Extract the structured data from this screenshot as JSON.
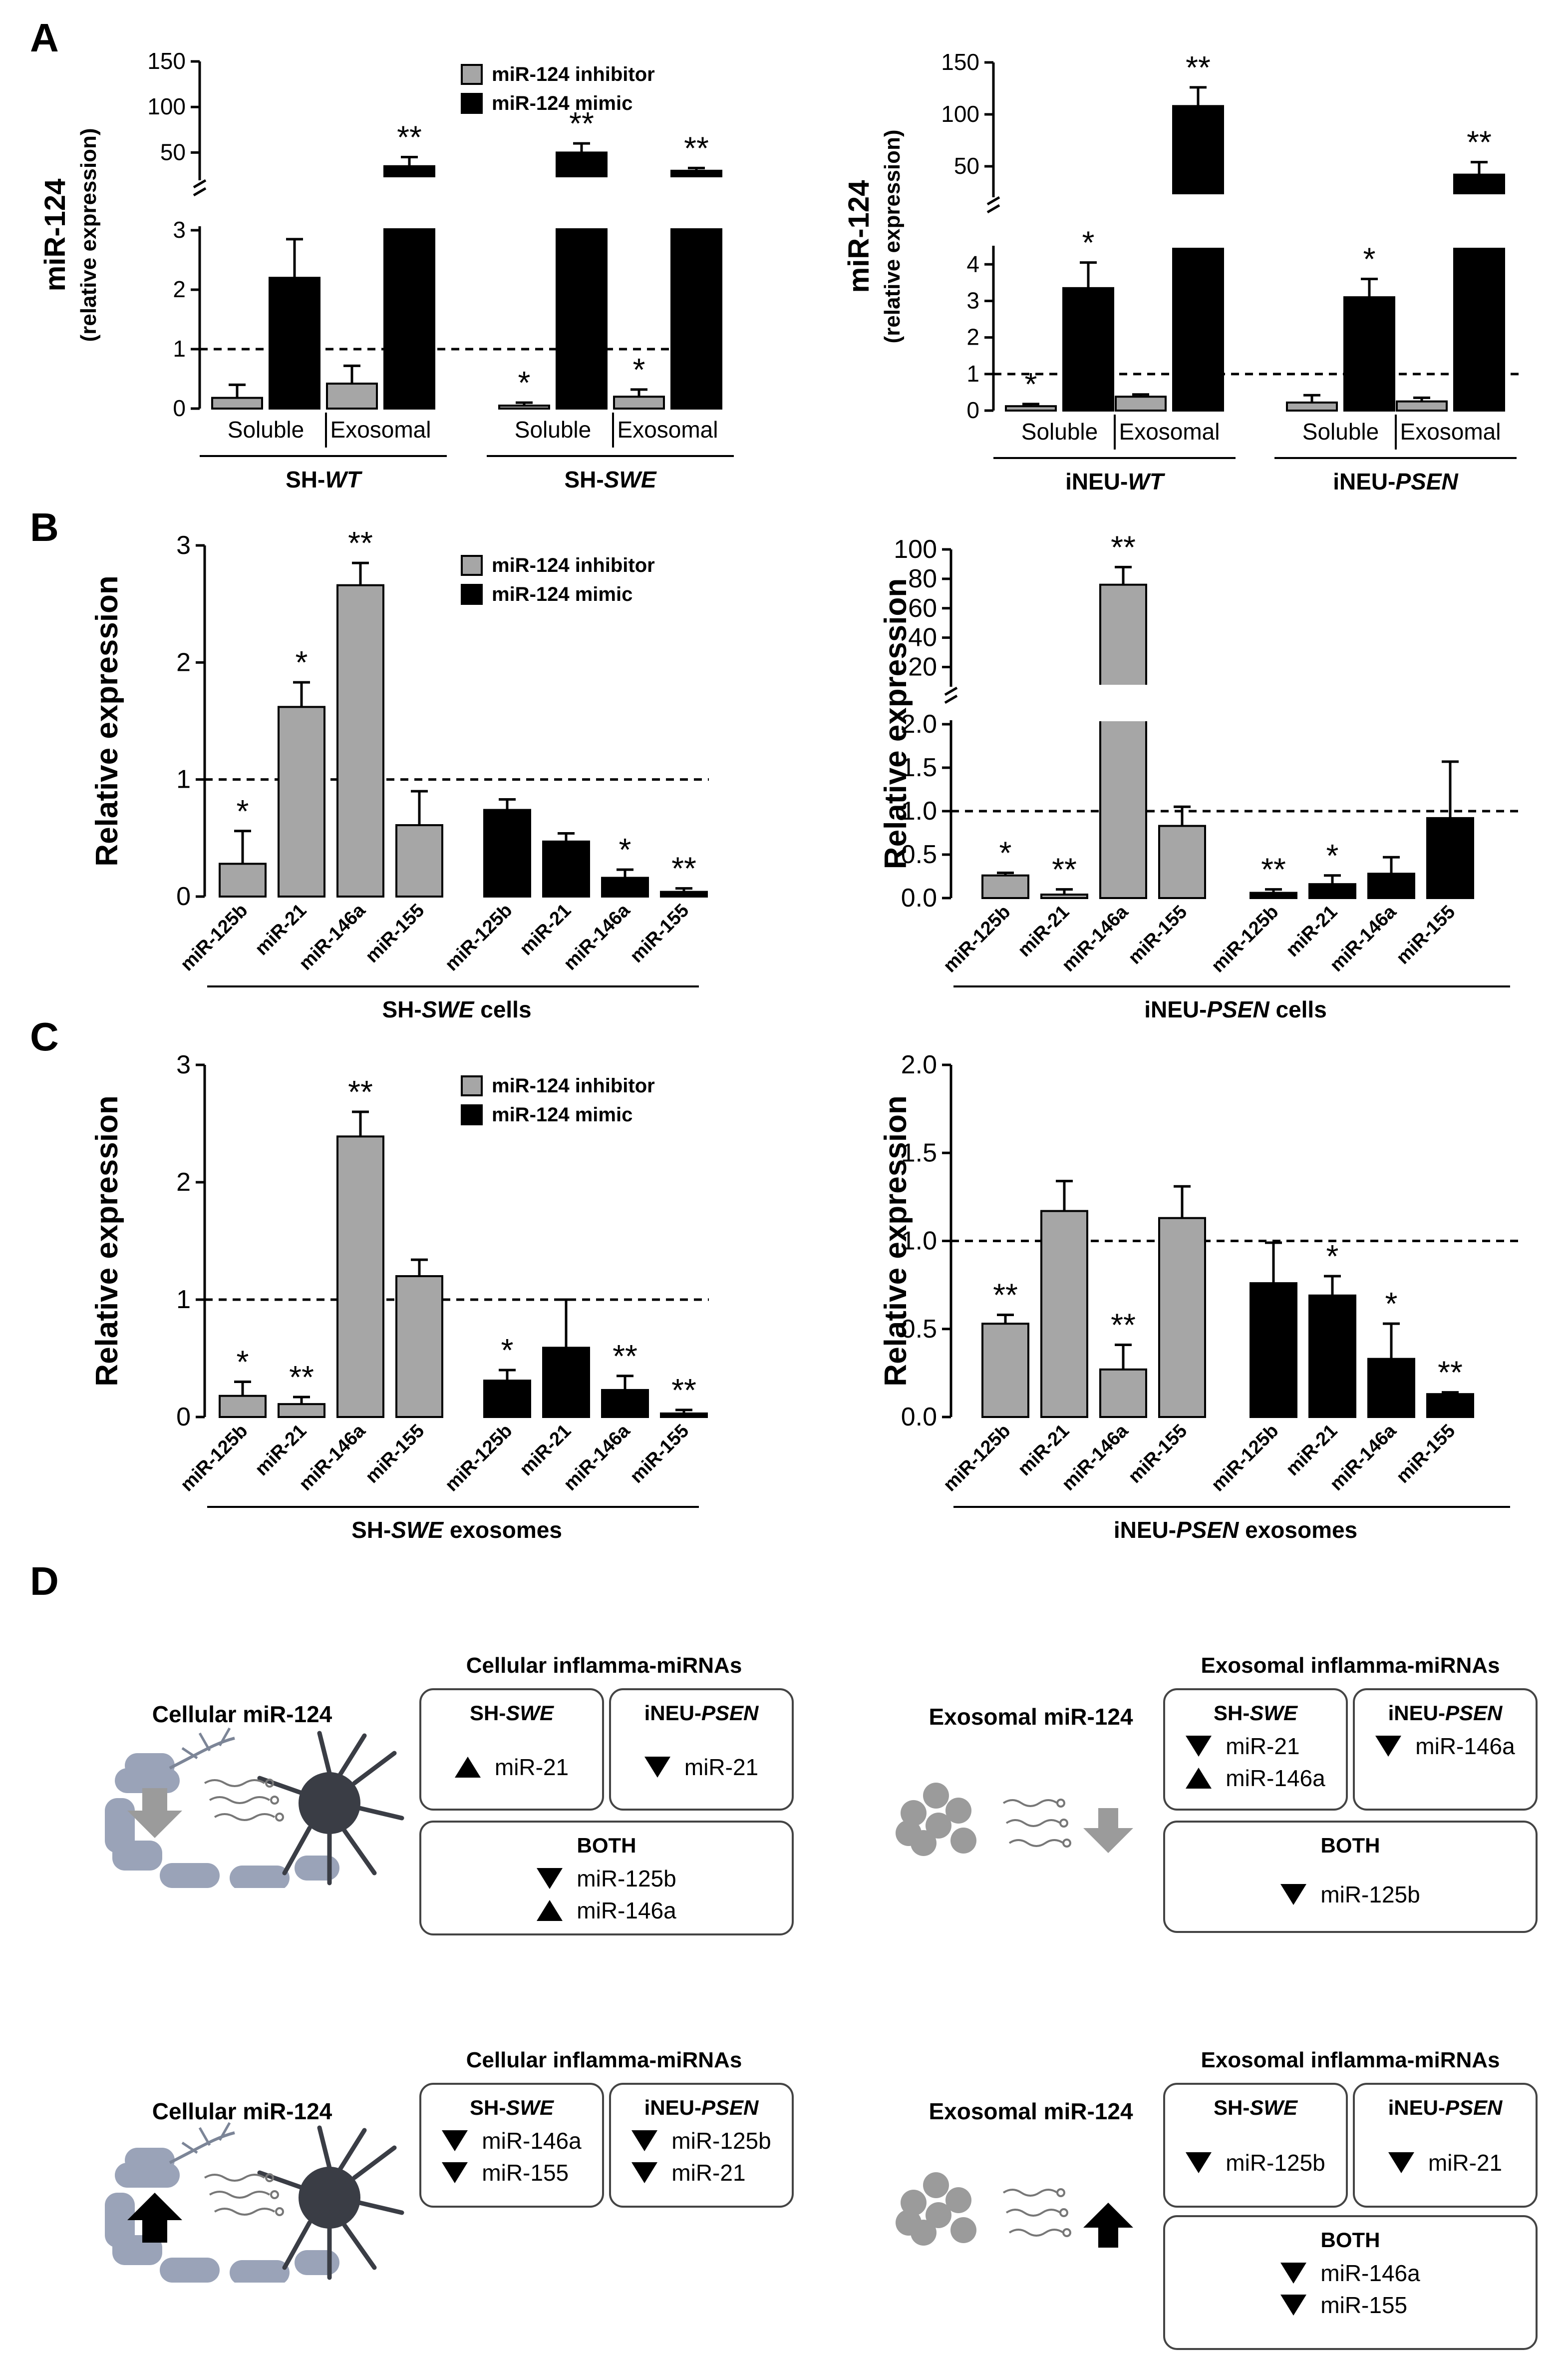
{
  "panel_labels": [
    "A",
    "B",
    "C",
    "D"
  ],
  "legend": {
    "inhibitor": "miR-124 inhibitor",
    "mimic": "miR-124 mimic"
  },
  "colors": {
    "inhibitor": "#a6a6a6",
    "mimic": "#000000",
    "banner_inhibitor": "#a6a6a6",
    "banner_mimic": "#000000"
  },
  "chart_data": [
    {
      "id": "A_left",
      "type": "bar",
      "panel": "A",
      "ylabel_line1": "miR-124",
      "ylabel_line2": "(relative expression)",
      "y_ticks_lower": [
        "0",
        "1",
        "2",
        "3"
      ],
      "y_ticks_upper": [
        "50",
        "100",
        "150"
      ],
      "ylim_lower": [
        0,
        3
      ],
      "ylim_upper": [
        25,
        150
      ],
      "reference_line": 1,
      "groups": [
        {
          "name": "SH-WT",
          "name_prefix": "SH-",
          "name_italic": "WT",
          "subgroups": [
            {
              "label": "Soluble",
              "inhibitor": {
                "value": 0.18,
                "err": 0.22,
                "sig": ""
              },
              "mimic": {
                "value": 2.2,
                "err": 0.65,
                "sig": ""
              }
            },
            {
              "label": "Exosomal",
              "inhibitor": {
                "value": 0.42,
                "err": 0.3,
                "sig": ""
              },
              "mimic": {
                "value": 35,
                "err": 10,
                "sig": "**"
              }
            }
          ]
        },
        {
          "name": "SH-SWE",
          "name_prefix": "SH-",
          "name_italic": "SWE",
          "subgroups": [
            {
              "label": "Soluble",
              "inhibitor": {
                "value": 0.05,
                "err": 0.05,
                "sig": "*"
              },
              "mimic": {
                "value": 50,
                "err": 10,
                "sig": "**"
              }
            },
            {
              "label": "Exosomal",
              "inhibitor": {
                "value": 0.2,
                "err": 0.12,
                "sig": "*"
              },
              "mimic": {
                "value": 30,
                "err": 3,
                "sig": "**"
              }
            }
          ]
        }
      ]
    },
    {
      "id": "A_right",
      "type": "bar",
      "panel": "A",
      "ylabel_line1": "miR-124",
      "ylabel_line2": "(relative expression)",
      "y_ticks_lower": [
        "0",
        "1",
        "2",
        "3",
        "4"
      ],
      "y_ticks_upper": [
        "50",
        "100",
        "150"
      ],
      "ylim_lower": [
        0,
        4.4
      ],
      "ylim_upper": [
        25,
        150
      ],
      "reference_line": 1,
      "groups": [
        {
          "name": "iNEU-WT",
          "name_prefix": "iNEU-",
          "name_italic": "WT",
          "subgroups": [
            {
              "label": "Soluble",
              "inhibitor": {
                "value": 0.12,
                "err": 0.06,
                "sig": "*"
              },
              "mimic": {
                "value": 3.35,
                "err": 0.7,
                "sig": "*"
              }
            },
            {
              "label": "Exosomal",
              "inhibitor": {
                "value": 0.38,
                "err": 0.06,
                "sig": ""
              },
              "mimic": {
                "value": 108,
                "err": 18,
                "sig": "**"
              }
            }
          ]
        },
        {
          "name": "iNEU-PSEN",
          "name_prefix": "iNEU-",
          "name_italic": "PSEN",
          "subgroups": [
            {
              "label": "Soluble",
              "inhibitor": {
                "value": 0.22,
                "err": 0.2,
                "sig": ""
              },
              "mimic": {
                "value": 3.1,
                "err": 0.5,
                "sig": "*"
              }
            },
            {
              "label": "Exosomal",
              "inhibitor": {
                "value": 0.25,
                "err": 0.1,
                "sig": ""
              },
              "mimic": {
                "value": 42,
                "err": 12,
                "sig": "**"
              }
            }
          ]
        }
      ]
    },
    {
      "id": "B_left",
      "type": "bar",
      "panel": "B",
      "ylabel": "Relative expression",
      "y_ticks": [
        "0",
        "1",
        "2",
        "3"
      ],
      "ylim": [
        0,
        3
      ],
      "reference_line": 1,
      "categories": [
        "miR-125b",
        "miR-21",
        "miR-146a",
        "miR-155"
      ],
      "series": [
        {
          "name": "miR-124 inhibitor",
          "values": [
            0.28,
            1.62,
            2.66,
            0.61
          ],
          "errors": [
            0.28,
            0.21,
            0.19,
            0.29
          ],
          "sig": [
            "*",
            "*",
            "**",
            ""
          ]
        },
        {
          "name": "miR-124 mimic",
          "values": [
            0.74,
            0.47,
            0.16,
            0.04
          ],
          "errors": [
            0.09,
            0.07,
            0.07,
            0.03
          ],
          "sig": [
            "",
            "",
            "*",
            "**"
          ]
        }
      ],
      "xgroup_prefix": "SH-",
      "xgroup_italic": "SWE",
      "xgroup_suffix": " cells"
    },
    {
      "id": "B_right",
      "type": "bar",
      "panel": "B",
      "ylabel": "Relative expression",
      "y_ticks_lower": [
        "0.0",
        "0.5",
        "1.0",
        "1.5",
        "2.0"
      ],
      "y_ticks_upper": [
        "20",
        "40",
        "60",
        "80",
        "100"
      ],
      "ylim_lower": [
        0,
        2
      ],
      "ylim_upper": [
        10,
        100
      ],
      "reference_line": 1,
      "categories": [
        "miR-125b",
        "miR-21",
        "miR-146a",
        "miR-155"
      ],
      "series": [
        {
          "name": "miR-124 inhibitor",
          "values": [
            0.26,
            0.04,
            76,
            0.83
          ],
          "errors": [
            0.03,
            0.06,
            12,
            0.22
          ],
          "sig": [
            "*",
            "**",
            "**",
            ""
          ]
        },
        {
          "name": "miR-124 mimic",
          "values": [
            0.06,
            0.16,
            0.28,
            0.92
          ],
          "errors": [
            0.04,
            0.1,
            0.19,
            0.65
          ],
          "sig": [
            "**",
            "*",
            "",
            ""
          ]
        }
      ],
      "xgroup_prefix": "iNEU-",
      "xgroup_italic": "PSEN",
      "xgroup_suffix": " cells"
    },
    {
      "id": "C_left",
      "type": "bar",
      "panel": "C",
      "ylabel": "Relative expression",
      "y_ticks": [
        "0",
        "1",
        "2",
        "3"
      ],
      "ylim": [
        0,
        3
      ],
      "reference_line": 1,
      "categories": [
        "miR-125b",
        "miR-21",
        "miR-146a",
        "miR-155"
      ],
      "series": [
        {
          "name": "miR-124 inhibitor",
          "values": [
            0.18,
            0.11,
            2.39,
            1.2
          ],
          "errors": [
            0.12,
            0.06,
            0.21,
            0.14
          ],
          "sig": [
            "*",
            "**",
            "**",
            ""
          ]
        },
        {
          "name": "miR-124 mimic",
          "values": [
            0.31,
            0.59,
            0.23,
            0.03
          ],
          "errors": [
            0.09,
            0.41,
            0.12,
            0.03
          ],
          "sig": [
            "*",
            "",
            "**",
            "**"
          ]
        }
      ],
      "xgroup_prefix": "SH-",
      "xgroup_italic": "SWE",
      "xgroup_suffix": " exosomes"
    },
    {
      "id": "C_right",
      "type": "bar",
      "panel": "C",
      "ylabel": "Relative expression",
      "y_ticks": [
        "0.0",
        "0.5",
        "1.0",
        "1.5",
        "2.0"
      ],
      "ylim": [
        0,
        2
      ],
      "reference_line": 1,
      "categories": [
        "miR-125b",
        "miR-21",
        "miR-146a",
        "miR-155"
      ],
      "series": [
        {
          "name": "miR-124 inhibitor",
          "values": [
            0.53,
            1.17,
            0.27,
            1.13
          ],
          "errors": [
            0.05,
            0.17,
            0.14,
            0.18
          ],
          "sig": [
            "**",
            "",
            "**",
            ""
          ]
        },
        {
          "name": "miR-124 mimic",
          "values": [
            0.76,
            0.69,
            0.33,
            0.13
          ],
          "errors": [
            0.23,
            0.11,
            0.2,
            0.01
          ],
          "sig": [
            "",
            "*",
            "*",
            "**"
          ]
        }
      ],
      "xgroup_prefix": "iNEU-",
      "xgroup_italic": "PSEN",
      "xgroup_suffix": " exosomes"
    }
  ],
  "panel_d": {
    "inhibitor": {
      "banner": "miR-124 inhibitor",
      "cellular": {
        "illus_label": "Cellular miR-124",
        "arrow": "down",
        "title": "Cellular inflamma-miRNAs",
        "sh_title_prefix": "SH-",
        "sh_title_italic": "SWE",
        "sh_items": [
          {
            "dir": "up",
            "text": "miR-21"
          }
        ],
        "ineu_title_prefix": "iNEU-",
        "ineu_title_italic": "PSEN",
        "ineu_items": [
          {
            "dir": "down",
            "text": "miR-21"
          }
        ],
        "both_title": "BOTH",
        "both_items": [
          {
            "dir": "down",
            "text": "miR-125b"
          },
          {
            "dir": "up",
            "text": "miR-146a"
          }
        ]
      },
      "exosomal": {
        "illus_label": "Exosomal miR-124",
        "arrow": "down",
        "title": "Exosomal inflamma-miRNAs",
        "sh_title_prefix": "SH-",
        "sh_title_italic": "SWE",
        "sh_items": [
          {
            "dir": "down",
            "text": "miR-21"
          },
          {
            "dir": "up",
            "text": "miR-146a"
          }
        ],
        "ineu_title_prefix": "iNEU-",
        "ineu_title_italic": "PSEN",
        "ineu_items": [
          {
            "dir": "down",
            "text": "miR-146a"
          }
        ],
        "both_title": "BOTH",
        "both_items": [
          {
            "dir": "down",
            "text": "miR-125b"
          }
        ]
      }
    },
    "mimic": {
      "banner": "miR-124 mimic",
      "cellular": {
        "illus_label": "Cellular miR-124",
        "arrow": "up",
        "title": "Cellular inflamma-miRNAs",
        "sh_title_prefix": "SH-",
        "sh_title_italic": "SWE",
        "sh_items": [
          {
            "dir": "down",
            "text": "miR-146a"
          },
          {
            "dir": "down",
            "text": "miR-155"
          }
        ],
        "ineu_title_prefix": "iNEU-",
        "ineu_title_italic": "PSEN",
        "ineu_items": [
          {
            "dir": "down",
            "text": "miR-125b"
          },
          {
            "dir": "down",
            "text": "miR-21"
          }
        ]
      },
      "exosomal": {
        "illus_label": "Exosomal miR-124",
        "arrow": "up",
        "title": "Exosomal inflamma-miRNAs",
        "sh_title_prefix": "SH-",
        "sh_title_italic": "SWE",
        "sh_items": [
          {
            "dir": "down",
            "text": "miR-125b"
          }
        ],
        "ineu_title_prefix": "iNEU-",
        "ineu_title_italic": "PSEN",
        "ineu_items": [
          {
            "dir": "down",
            "text": "miR-21"
          }
        ],
        "both_title": "BOTH",
        "both_items": [
          {
            "dir": "down",
            "text": "miR-146a"
          },
          {
            "dir": "down",
            "text": "miR-155"
          }
        ]
      }
    }
  }
}
